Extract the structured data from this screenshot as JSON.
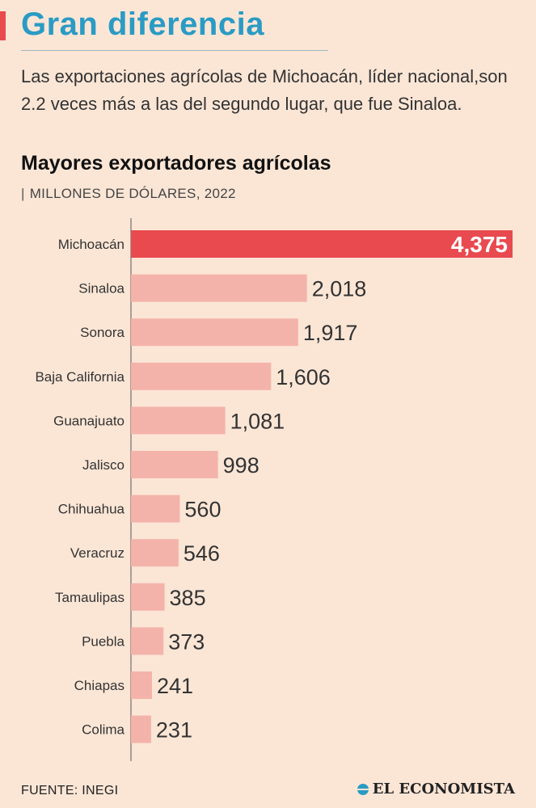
{
  "header": {
    "title": "Gran diferencia",
    "subtitle": "Las exportaciones agrícolas de Michoacán, líder nacional,son 2.2 veces más a las del segundo lugar, que fue Sinaloa."
  },
  "colors": {
    "background": "#fbe6d6",
    "title": "#2a9bc4",
    "accent": "#e84a4f",
    "bar": "#f4b3aa",
    "bar_highlight": "#e84a4f"
  },
  "chart_data": {
    "type": "bar",
    "orientation": "horizontal",
    "title": "Mayores exportadores agrícolas",
    "unit": "MILLONES DE DÓLARES, 2022",
    "categories": [
      "Michoacán",
      "Sinaloa",
      "Sonora",
      "Baja California",
      "Guanajuato",
      "Jalisco",
      "Chihuahua",
      "Veracruz",
      "Tamaulipas",
      "Puebla",
      "Chiapas",
      "Colima"
    ],
    "values": [
      4375,
      2018,
      1917,
      1606,
      1081,
      998,
      560,
      546,
      385,
      373,
      241,
      231
    ],
    "value_labels": [
      "4,375",
      "2,018",
      "1,917",
      "1,606",
      "1,081",
      "998",
      "560",
      "546",
      "385",
      "373",
      "241",
      "231"
    ],
    "highlight": "Michoacán",
    "xlim": [
      0,
      4375
    ]
  },
  "footer": {
    "source": "FUENTE: INEGI",
    "brand": "EL ECONOMISTA"
  }
}
